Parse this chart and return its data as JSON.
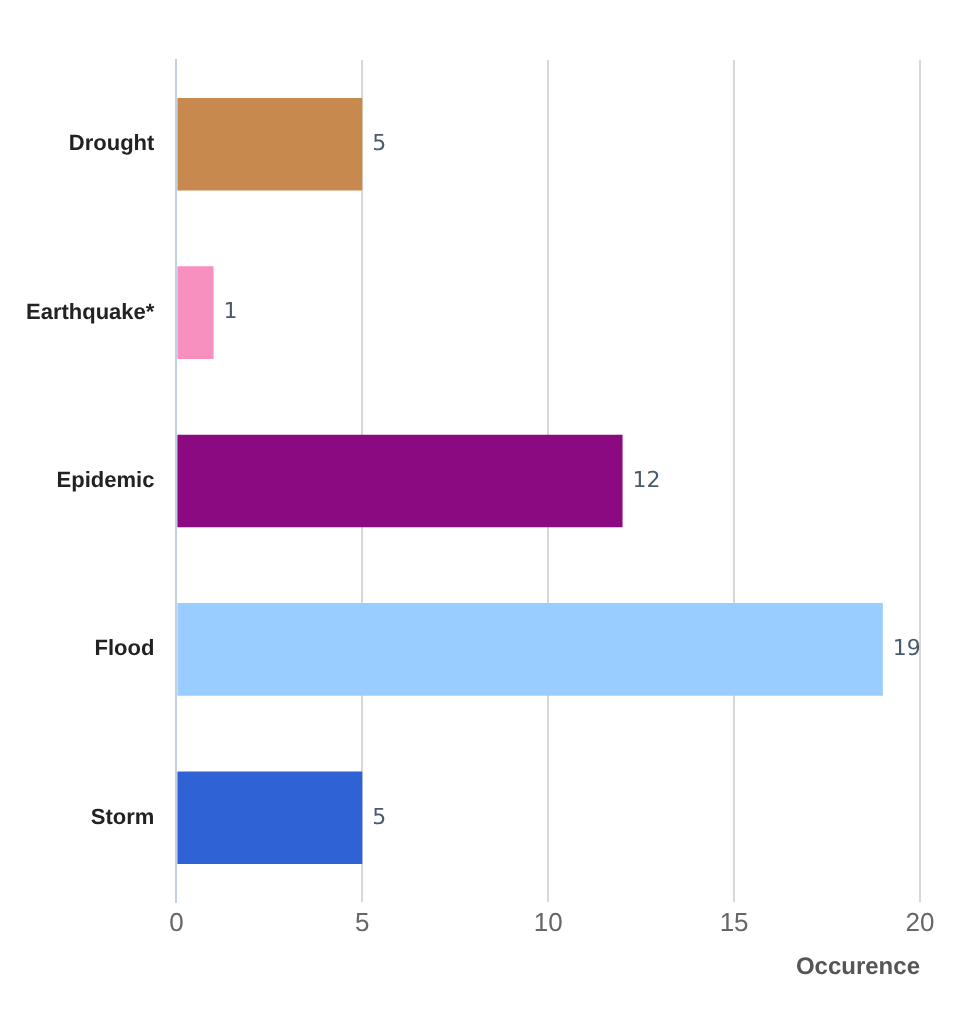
{
  "chart_data": {
    "type": "bar",
    "orientation": "horizontal",
    "xlabel": "Occurence",
    "categories": [
      "Drought",
      "Earthquake*",
      "Epidemic",
      "Flood",
      "Storm"
    ],
    "values": [
      5,
      1,
      12,
      19,
      5
    ],
    "colors": [
      "#c8894e",
      "#f78fbf",
      "#8b0a82",
      "#99ccff",
      "#2f62d4"
    ],
    "xlim": [
      0,
      20
    ],
    "xticks": [
      0,
      5,
      10,
      15,
      20
    ],
    "grid": "x",
    "data_labels": true
  }
}
